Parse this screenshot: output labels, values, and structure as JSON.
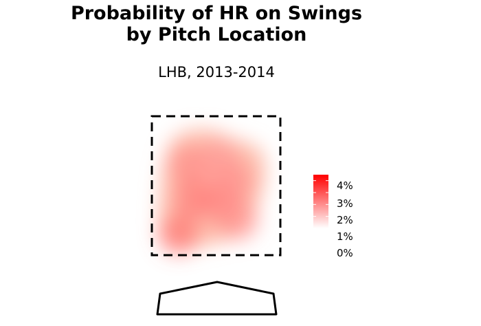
{
  "chart_data": {
    "type": "heatmap",
    "title": "Probability of HR on Swings\nby Pitch Location",
    "title_lines": [
      "Probability of HR on Swings",
      "by Pitch Location"
    ],
    "subtitle": "LHB, 2013-2014",
    "xlabel": "",
    "ylabel": "",
    "legend": {
      "placement": "right",
      "min": 0,
      "max": 4.5,
      "ticks": [
        {
          "value": 0,
          "label": "0%"
        },
        {
          "value": 1,
          "label": "1%"
        },
        {
          "value": 2,
          "label": "2%"
        },
        {
          "value": 3,
          "label": "3%"
        },
        {
          "value": 4,
          "label": "4%"
        }
      ],
      "color_low": "#ffffff",
      "color_high": "#ff0000"
    },
    "strike_zone": "dashed box",
    "home_plate": true,
    "hotspots": [
      {
        "h": 0.15,
        "v": 0.12,
        "value": 2.8
      },
      {
        "h": 0.3,
        "v": 0.45,
        "value": 2.6
      },
      {
        "h": 0.55,
        "v": 0.4,
        "value": 2.4
      },
      {
        "h": 0.7,
        "v": 0.6,
        "value": 2.2
      },
      {
        "h": 0.25,
        "v": 0.75,
        "value": 2.3
      },
      {
        "h": 0.55,
        "v": 0.8,
        "value": 2.0
      },
      {
        "h": 0.75,
        "v": 0.25,
        "value": 2.1
      }
    ]
  }
}
